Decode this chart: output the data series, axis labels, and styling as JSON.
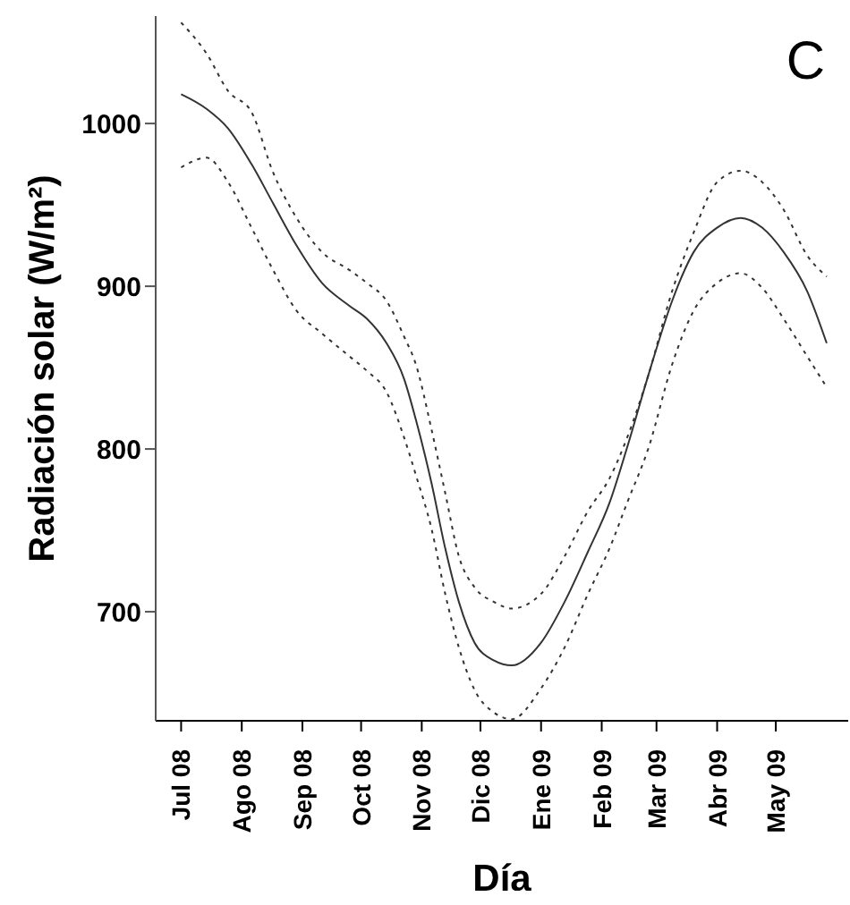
{
  "chart_data": {
    "type": "line",
    "xlabel": "Día",
    "ylabel": "Radiación solar (W/m²)",
    "annotations": [
      "C"
    ],
    "x": [
      "2008-07-01",
      "2008-07-14",
      "2008-07-25",
      "2008-08-06",
      "2008-08-17",
      "2008-08-29",
      "2008-09-11",
      "2008-09-25",
      "2008-10-04",
      "2008-10-14",
      "2008-10-23",
      "2008-10-29",
      "2008-11-06",
      "2008-11-13",
      "2008-11-20",
      "2008-11-28",
      "2008-12-08",
      "2008-12-17",
      "2009-01-01",
      "2009-01-13",
      "2009-01-25",
      "2009-02-05",
      "2009-02-14",
      "2009-02-25",
      "2009-03-09",
      "2009-03-20",
      "2009-04-01",
      "2009-04-13",
      "2009-04-24",
      "2009-05-05",
      "2009-05-17",
      "2009-05-27"
    ],
    "series": [
      {
        "color": "#333333",
        "values": [
          1018,
          1009,
          997,
          975,
          951,
          925,
          902,
          888,
          880,
          865,
          843,
          818,
          779,
          739,
          706,
          681,
          670,
          667,
          681,
          706,
          737,
          767,
          801,
          846,
          891,
          921,
          936,
          942,
          936,
          921,
          897,
          865
        ]
      },
      {
        "color": "#333333",
        "line_style": "dotted",
        "values": [
          973,
          979,
          964,
          936,
          910,
          885,
          871,
          857,
          848,
          835,
          807,
          784,
          751,
          711,
          678,
          652,
          638,
          634,
          653,
          678,
          711,
          739,
          767,
          801,
          852,
          885,
          902,
          908,
          899,
          880,
          857,
          838
        ]
      },
      {
        "color": "#333333",
        "line_style": "dotted",
        "values": [
          1062,
          1043,
          1020,
          1007,
          970,
          942,
          921,
          910,
          902,
          891,
          869,
          852,
          812,
          773,
          734,
          715,
          706,
          702,
          711,
          734,
          762,
          782,
          807,
          846,
          897,
          933,
          964,
          971,
          964,
          947,
          919,
          906
        ]
      }
    ],
    "xlim": [
      "2008-06-18",
      "2009-06-07"
    ],
    "xticks": [
      {
        "value": "2008-07-01",
        "label": "Jul 08"
      },
      {
        "value": "2008-08-01",
        "label": "Ago 08"
      },
      {
        "value": "2008-09-01",
        "label": "Sep 08"
      },
      {
        "value": "2008-10-01",
        "label": "Oct 08"
      },
      {
        "value": "2008-11-01",
        "label": "Nov 08"
      },
      {
        "value": "2008-12-01",
        "label": "Dic 08"
      },
      {
        "value": "2009-01-01",
        "label": "Ene 09"
      },
      {
        "value": "2009-02-01",
        "label": "Feb 09"
      },
      {
        "value": "2009-03-01",
        "label": "Mar 09"
      },
      {
        "value": "2009-04-01",
        "label": "Abr 09"
      },
      {
        "value": "2009-05-01",
        "label": "May 09"
      }
    ],
    "ylim": [
      633,
      1066
    ],
    "yticks": [
      700,
      800,
      900,
      1000
    ],
    "grid": false,
    "marker": "none",
    "line_style": "solid"
  }
}
